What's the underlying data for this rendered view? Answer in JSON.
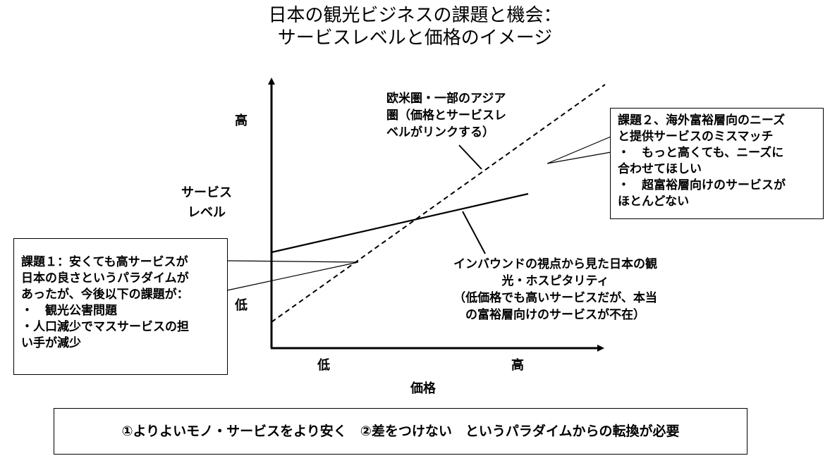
{
  "title": {
    "line1": "日本の観光ビジネスの課題と機会：",
    "line2": "サービスレベルと価格のイメージ"
  },
  "axes": {
    "y_high": "高",
    "y_low": "低",
    "y_label_line1": "サービス",
    "y_label_line2": "レベル",
    "x_low": "低",
    "x_high": "高",
    "x_label": "価格"
  },
  "labels": {
    "western": [
      "欧米圏・一部のアジア",
      "圏（価格とサービスレ",
      "ベルがリンクする）"
    ],
    "inbound": [
      "インバウンドの視点から見た日本の観",
      "光・ホスピタリティ",
      "（低価格でも高いサービスだが、本当",
      "の富裕層向けのサービスが不在）"
    ]
  },
  "callouts": {
    "issue1": [
      "課題１：安くても高サービスが",
      "日本の良さというパラダイムが",
      "あったが、今後以下の課題が：",
      "・　観光公害問題",
      "・人口減少でマスサービスの担",
      "い手が減少"
    ],
    "issue2": [
      "課題２、海外富裕層向のニーズ",
      "と提供サービスのミスマッチ",
      "・　もっと高くても、ニーズに",
      "合わせてほしい",
      "・　超富裕層向けのサービスが",
      "ほとんどない"
    ]
  },
  "footer": "①よりよいモノ・サービスをより安く　②差をつけない　というパラダイムからの転換が必要"
}
